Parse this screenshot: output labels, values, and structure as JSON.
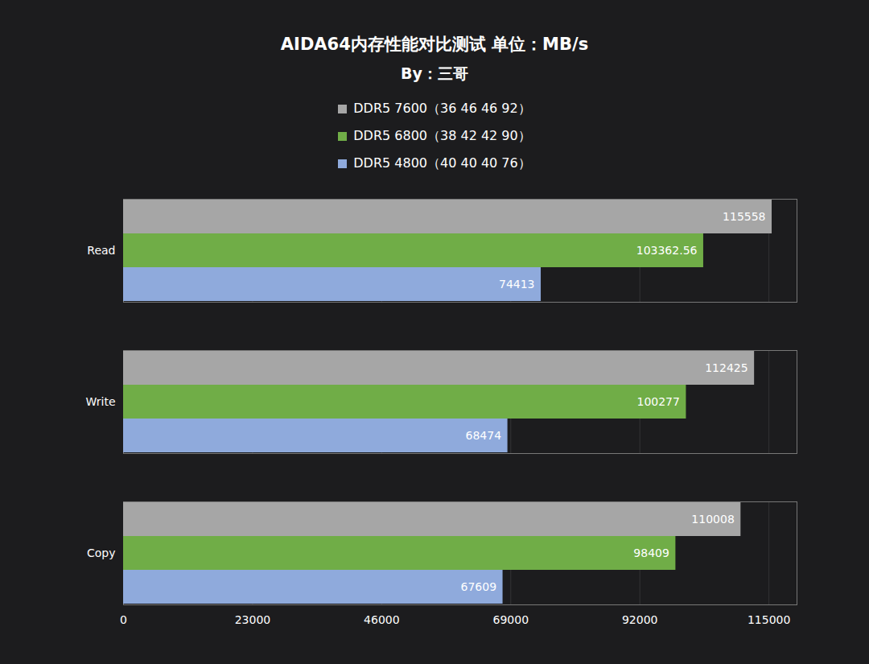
{
  "chart_data": {
    "type": "bar",
    "orientation": "horizontal",
    "title": "AIDA64内存性能对比测试 单位：MB/s",
    "subtitle": "By：三哥",
    "categories": [
      "Read",
      "Write",
      "Copy"
    ],
    "series": [
      {
        "name": "DDR5 7600（36 46 46 92）",
        "color": "#a6a6a6",
        "values": [
          115558,
          112425,
          110008
        ]
      },
      {
        "name": "DDR5 6800（38 42 42 90）",
        "color": "#70ad47",
        "values": [
          103362.56,
          100277,
          98409
        ]
      },
      {
        "name": "DDR5 4800（40 40 40 76）",
        "color": "#8faadc",
        "values": [
          74413,
          68474,
          67609
        ]
      }
    ],
    "xlim": [
      0,
      120000
    ],
    "xticks": [
      0,
      23000,
      46000,
      69000,
      92000,
      115000
    ],
    "grid": true,
    "legend": "top",
    "data_labels": true
  }
}
